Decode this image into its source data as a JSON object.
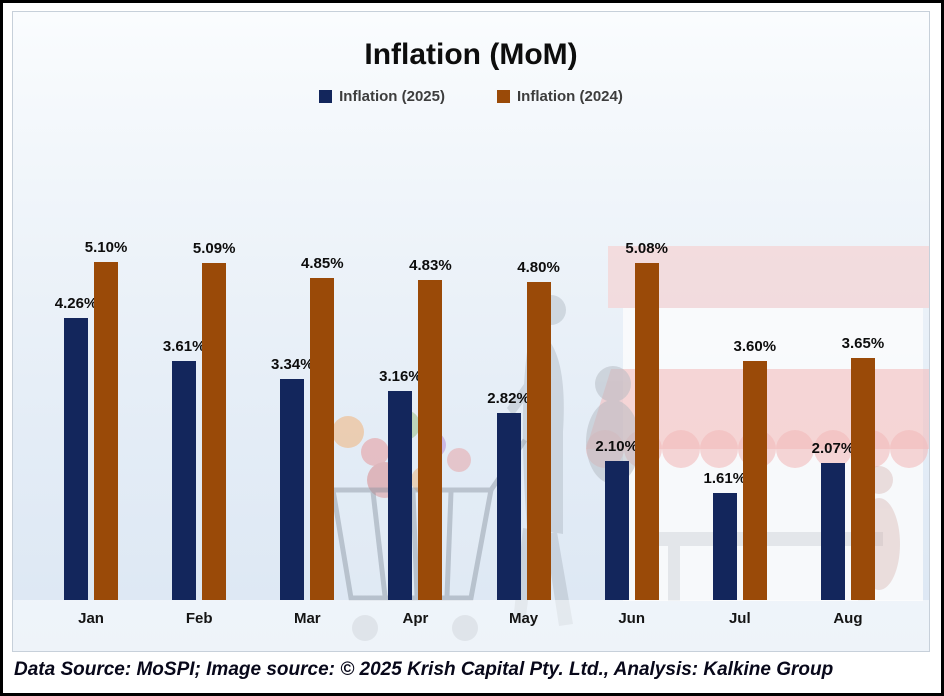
{
  "title": "Inflation (MoM)",
  "legend": {
    "items": [
      {
        "key": "2025",
        "label": "Inflation (2025)",
        "color": "#13265c"
      },
      {
        "key": "2024",
        "label": "Inflation (2024)",
        "color": "#9a4a08"
      }
    ]
  },
  "footer": {
    "credit": "Data Source: MoSPI; Image source: © 2025 Krish Capital Pty. Ltd., Analysis: Kalkine Group"
  },
  "chart_data": {
    "type": "bar",
    "title": "Inflation (MoM)",
    "categories": [
      "Jan",
      "Feb",
      "Mar",
      "Apr",
      "May",
      "Jun",
      "Jul",
      "Aug"
    ],
    "series": [
      {
        "key": "2025",
        "name": "Inflation (2025)",
        "color": "#13265c",
        "values": [
          4.26,
          3.61,
          3.34,
          3.16,
          2.82,
          2.1,
          1.61,
          2.07
        ],
        "labels": [
          "4.26%",
          "3.61%",
          "3.34%",
          "3.16%",
          "2.82%",
          "2.10%",
          "1.61%",
          "2.07%"
        ]
      },
      {
        "key": "2024",
        "name": "Inflation (2024)",
        "color": "#9a4a08",
        "values": [
          5.1,
          5.09,
          4.85,
          4.83,
          4.8,
          5.08,
          3.6,
          3.65
        ],
        "labels": [
          "5.10%",
          "5.09%",
          "4.85%",
          "4.83%",
          "4.80%",
          "5.08%",
          "3.60%",
          "3.65%"
        ]
      }
    ],
    "xlabel": "",
    "ylabel": "",
    "ylim": [
      0,
      5.5
    ],
    "grid": false,
    "legend_position": "top",
    "value_labels": true,
    "y_axis_visible": false
  }
}
